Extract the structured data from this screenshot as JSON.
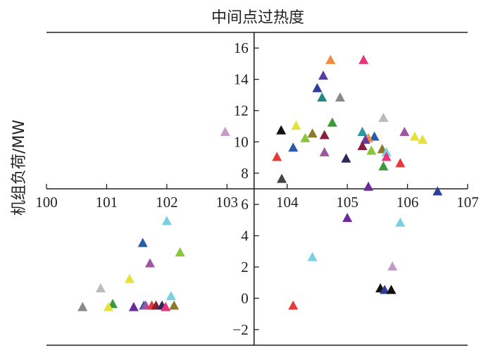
{
  "chart_data": {
    "type": "scatter",
    "title": "中间点过热度",
    "ylabel": "机组负荷/MW",
    "xlabel": "",
    "xlim": [
      100,
      107
    ],
    "ylim": [
      -3,
      17
    ],
    "x_ticks": [
      100,
      101,
      102,
      103,
      104,
      105,
      106,
      107
    ],
    "y_ticks": [
      -2,
      0,
      2,
      4,
      6,
      8,
      10,
      12,
      14,
      16
    ],
    "x_tick_labels": [
      "100",
      "101",
      "102",
      "103",
      "104",
      "105",
      "106",
      "107"
    ],
    "y_tick_labels": [
      "−2",
      "0",
      "2",
      "4",
      "6",
      "8",
      "10",
      "12",
      "14",
      "16"
    ],
    "marker": "triangle",
    "grid": false,
    "legend": "none",
    "points": [
      {
        "x": 104.72,
        "y": 15.2,
        "color": "#f08a3c"
      },
      {
        "x": 105.27,
        "y": 15.2,
        "color": "#e8337f"
      },
      {
        "x": 104.6,
        "y": 14.2,
        "color": "#5c3d9c"
      },
      {
        "x": 104.5,
        "y": 13.4,
        "color": "#2e3f9a"
      },
      {
        "x": 104.58,
        "y": 12.8,
        "color": "#1f8a82"
      },
      {
        "x": 104.88,
        "y": 12.8,
        "color": "#888888"
      },
      {
        "x": 105.6,
        "y": 11.5,
        "color": "#bbbbbb"
      },
      {
        "x": 103.9,
        "y": 10.7,
        "color": "#111111"
      },
      {
        "x": 104.15,
        "y": 11.0,
        "color": "#e6e03a"
      },
      {
        "x": 104.75,
        "y": 11.2,
        "color": "#3a9a3a"
      },
      {
        "x": 102.97,
        "y": 10.6,
        "color": "#c79ac7"
      },
      {
        "x": 104.42,
        "y": 10.5,
        "color": "#8a7a2a"
      },
      {
        "x": 104.62,
        "y": 10.4,
        "color": "#8a1f3a"
      },
      {
        "x": 105.25,
        "y": 10.6,
        "color": "#2a9aa0"
      },
      {
        "x": 105.95,
        "y": 10.6,
        "color": "#a055a0"
      },
      {
        "x": 104.3,
        "y": 10.2,
        "color": "#8ac63a"
      },
      {
        "x": 105.45,
        "y": 10.3,
        "color": "#2a5aaa"
      },
      {
        "x": 105.35,
        "y": 10.2,
        "color": "#f08a3c"
      },
      {
        "x": 105.3,
        "y": 10.1,
        "color": "#6a3a9a"
      },
      {
        "x": 106.12,
        "y": 10.3,
        "color": "#e6e03a"
      },
      {
        "x": 106.25,
        "y": 10.1,
        "color": "#e6e03a"
      },
      {
        "x": 104.1,
        "y": 9.6,
        "color": "#2a5aaa"
      },
      {
        "x": 105.25,
        "y": 9.7,
        "color": "#8a1f3a"
      },
      {
        "x": 105.58,
        "y": 9.5,
        "color": "#8a7a2a"
      },
      {
        "x": 105.4,
        "y": 9.4,
        "color": "#8ac63a"
      },
      {
        "x": 104.62,
        "y": 9.3,
        "color": "#a055a0"
      },
      {
        "x": 105.65,
        "y": 9.3,
        "color": "#7ad0e0"
      },
      {
        "x": 103.83,
        "y": 9.0,
        "color": "#e83a3a"
      },
      {
        "x": 104.98,
        "y": 8.9,
        "color": "#2a2a5a"
      },
      {
        "x": 105.65,
        "y": 9.0,
        "color": "#e8337f"
      },
      {
        "x": 105.6,
        "y": 8.4,
        "color": "#3a9a3a"
      },
      {
        "x": 105.88,
        "y": 8.6,
        "color": "#e83a3a"
      },
      {
        "x": 103.91,
        "y": 7.6,
        "color": "#444444"
      },
      {
        "x": 105.35,
        "y": 7.1,
        "color": "#6a2a9a"
      },
      {
        "x": 106.5,
        "y": 6.8,
        "color": "#2e3f9a"
      },
      {
        "x": 105.0,
        "y": 5.1,
        "color": "#6a2a9a"
      },
      {
        "x": 102.0,
        "y": 4.9,
        "color": "#7ad0e0"
      },
      {
        "x": 105.88,
        "y": 4.8,
        "color": "#7ad0e0"
      },
      {
        "x": 101.6,
        "y": 3.5,
        "color": "#2a5aaa"
      },
      {
        "x": 102.22,
        "y": 2.9,
        "color": "#8ac63a"
      },
      {
        "x": 104.42,
        "y": 2.6,
        "color": "#7ad0e0"
      },
      {
        "x": 101.72,
        "y": 2.2,
        "color": "#a055a0"
      },
      {
        "x": 105.75,
        "y": 2.0,
        "color": "#c79ac7"
      },
      {
        "x": 101.38,
        "y": 1.2,
        "color": "#e6e03a"
      },
      {
        "x": 100.9,
        "y": 0.6,
        "color": "#bbbbbb"
      },
      {
        "x": 105.55,
        "y": 0.6,
        "color": "#111111"
      },
      {
        "x": 105.62,
        "y": 0.5,
        "color": "#2e3f9a"
      },
      {
        "x": 105.73,
        "y": 0.5,
        "color": "#111111"
      },
      {
        "x": 102.07,
        "y": 0.1,
        "color": "#7ad0e0"
      },
      {
        "x": 101.1,
        "y": -0.4,
        "color": "#3a9a3a"
      },
      {
        "x": 100.6,
        "y": -0.6,
        "color": "#888888"
      },
      {
        "x": 101.03,
        "y": -0.6,
        "color": "#e6e03a"
      },
      {
        "x": 101.45,
        "y": -0.6,
        "color": "#6a2a9a"
      },
      {
        "x": 101.62,
        "y": -0.5,
        "color": "#2a5aaa"
      },
      {
        "x": 101.65,
        "y": -0.5,
        "color": "#a055a0"
      },
      {
        "x": 101.75,
        "y": -0.5,
        "color": "#e83a3a"
      },
      {
        "x": 101.82,
        "y": -0.5,
        "color": "#8a1f3a"
      },
      {
        "x": 101.92,
        "y": -0.5,
        "color": "#2a2a5a"
      },
      {
        "x": 101.98,
        "y": -0.6,
        "color": "#e8337f"
      },
      {
        "x": 102.12,
        "y": -0.5,
        "color": "#8a7a2a"
      },
      {
        "x": 104.1,
        "y": -0.5,
        "color": "#e83a3a"
      }
    ]
  }
}
